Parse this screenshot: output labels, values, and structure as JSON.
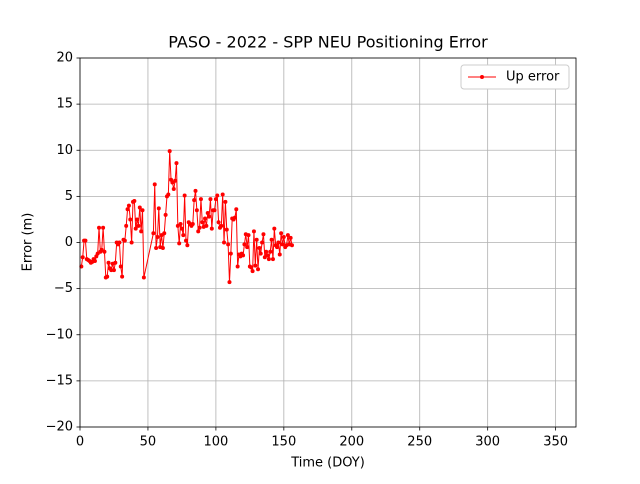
{
  "chart_data": {
    "type": "line",
    "title": "PASO - 2022 - SPP NEU Positioning Error",
    "xlabel": "Time (DOY)",
    "ylabel": "Error (m)",
    "x": [
      1,
      2,
      3,
      4,
      5,
      6,
      7,
      8,
      9,
      10,
      11,
      12,
      13,
      14,
      15,
      16,
      17,
      18,
      19,
      20,
      21,
      22,
      23,
      24,
      25,
      26,
      27,
      28,
      29,
      30,
      31,
      32,
      33,
      34,
      35,
      36,
      37,
      38,
      39,
      40,
      41,
      42,
      43,
      44,
      45,
      46,
      47,
      54,
      55,
      56,
      57,
      58,
      59,
      60,
      61,
      62,
      63,
      64,
      65,
      66,
      67,
      68,
      69,
      70,
      71,
      72,
      73,
      74,
      75,
      76,
      77,
      78,
      79,
      80,
      81,
      82,
      83,
      84,
      85,
      86,
      87,
      88,
      89,
      90,
      91,
      92,
      93,
      94,
      95,
      96,
      97,
      98,
      99,
      100,
      101,
      102,
      103,
      104,
      105,
      106,
      107,
      108,
      109,
      110,
      111,
      112,
      113,
      114,
      115,
      116,
      117,
      118,
      119,
      120,
      121,
      122,
      123,
      124,
      125,
      126,
      127,
      128,
      129,
      130,
      131,
      132,
      133,
      134,
      135,
      136,
      137,
      138,
      139,
      140,
      141,
      142,
      143,
      144,
      145,
      146,
      147,
      148,
      149,
      150,
      151,
      152,
      153,
      154,
      155,
      156
    ],
    "series": [
      {
        "name": "Up error",
        "color": "#ff0000",
        "values": [
          -2.6,
          -1.6,
          0.2,
          0.2,
          -1.8,
          -1.9,
          -2,
          -2.2,
          -2.1,
          -1.8,
          -2,
          -1.5,
          -1.2,
          1.6,
          -1,
          -0.8,
          1.6,
          -1,
          -3.8,
          -3.7,
          -2.2,
          -2.8,
          -3,
          -2.3,
          -3,
          -2.2,
          0,
          -0.2,
          0,
          -2.6,
          -3.7,
          0.3,
          0.2,
          1.8,
          3.6,
          4,
          2.5,
          0,
          4.4,
          4.5,
          1.5,
          2.5,
          1.8,
          3.8,
          1.2,
          3.5,
          -3.8,
          1,
          6.3,
          -0.6,
          0.6,
          3.7,
          -0.5,
          0.8,
          -0.6,
          1,
          3,
          5,
          5.2,
          9.9,
          6.8,
          6.5,
          5.8,
          6.7,
          8.6,
          1.8,
          -0.1,
          2,
          1.5,
          0.8,
          5.1,
          0.2,
          -0.3,
          2.2,
          2,
          1.8,
          2,
          4.6,
          5.6,
          3.5,
          1.2,
          1.6,
          4.7,
          2.2,
          1.7,
          2.6,
          1.8,
          3.2,
          2.8,
          4.7,
          1.5,
          3.5,
          3.5,
          4.7,
          5.1,
          2.2,
          1.6,
          1.8,
          5.2,
          0,
          4.4,
          1.4,
          -0.2,
          -4.3,
          -1.2,
          2.6,
          2.5,
          2.7,
          3.6,
          -2.6,
          -1.3,
          -1.5,
          -1.2,
          -1.4,
          -0.2,
          0.9,
          -0.5,
          0.8,
          -2.6,
          -2.7,
          -3.1,
          1.2,
          -2.5,
          0.3,
          -2.9,
          -0.6,
          -1.2,
          0,
          0.9,
          -1.6,
          -1,
          -1.4,
          -1.8,
          -1,
          0.3,
          -1.8,
          1.5,
          -0.3,
          -0.5,
          0,
          -1.3,
          1,
          -0.2,
          0.6,
          -0.5,
          -0.3,
          0.8,
          -0.2,
          0.5,
          -0.3
        ]
      }
    ],
    "xlim": [
      0,
      365
    ],
    "xticks": [
      0,
      50,
      100,
      150,
      200,
      250,
      300,
      350
    ],
    "ylim": [
      -20,
      20
    ],
    "yticks": [
      {
        "value": -20,
        "label": "−20"
      },
      {
        "value": -15,
        "label": "−15"
      },
      {
        "value": -10,
        "label": "−10"
      },
      {
        "value": -5,
        "label": "−5"
      },
      0,
      5,
      10,
      15,
      20
    ],
    "grid": true,
    "legend": "upper right"
  }
}
